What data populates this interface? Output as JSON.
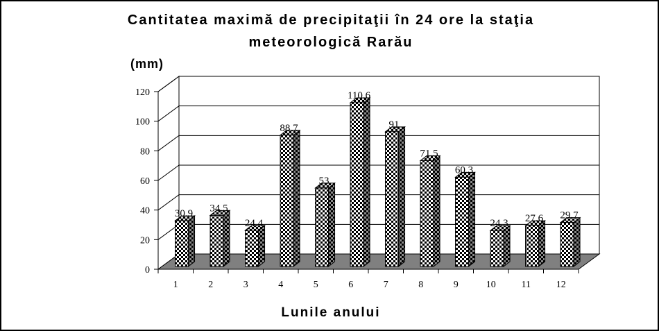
{
  "chart_data": {
    "type": "bar",
    "title": "Cantitatea maximă de precipitaţii în 24 ore la staţia meteorologică Rarău",
    "title_lines": [
      "Cantitatea maximă de precipitaţii în 24 ore la staţia",
      "meteorologică Rarău"
    ],
    "ylabel": "(mm)",
    "xlabel": "Lunile anului",
    "categories": [
      "1",
      "2",
      "3",
      "4",
      "5",
      "6",
      "7",
      "8",
      "9",
      "10",
      "11",
      "12"
    ],
    "values": [
      30.9,
      34.5,
      24.4,
      88.7,
      53,
      110.6,
      91,
      71.5,
      60.3,
      24.3,
      27.6,
      29.7
    ],
    "data_labels": [
      "30.9",
      "34.5",
      "24.4",
      "88.7",
      "53",
      "110.6",
      "91",
      "71.5",
      "60.3",
      "24.3",
      "27.6",
      "29.7"
    ],
    "ylim": [
      0,
      120
    ],
    "yticks": [
      "0",
      "20",
      "40",
      "60",
      "80",
      "100",
      "120"
    ],
    "grid": true,
    "style": "3d-bars",
    "colors": {
      "floor": "#808080",
      "bar_dark": "#000000",
      "bar_light": "#ffffff",
      "wall_line": "#000000"
    }
  }
}
